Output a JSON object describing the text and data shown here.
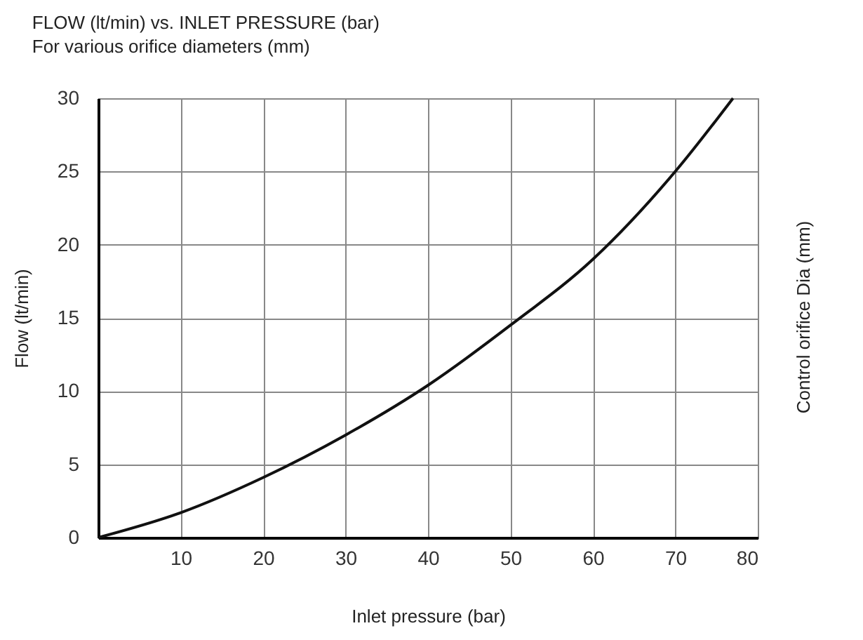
{
  "chart_data": {
    "type": "line",
    "title": "FLOW (lt/min) vs. INLET PRESSURE (bar)",
    "subtitle": "For various orifice diameters (mm)",
    "xlabel": "Inlet pressure (bar)",
    "ylabel": "Flow (lt/min)",
    "y2label": "Control orifice Dia (mm)",
    "x": [
      0,
      10,
      20,
      30,
      40,
      50,
      60,
      70,
      77
    ],
    "series": [
      {
        "color": "#111111",
        "values": [
          0,
          1.7,
          4.1,
          7.0,
          10.4,
          14.5,
          19.0,
          25.0,
          30.0
        ]
      }
    ],
    "xlim": [
      0,
      80
    ],
    "ylim": [
      0,
      30
    ],
    "xticks": [
      {
        "value": 0,
        "label": null
      },
      10,
      20,
      30,
      40,
      50,
      60,
      70,
      80
    ],
    "yticks": [
      0,
      5,
      10,
      15,
      20,
      25,
      30
    ],
    "grid": true,
    "marker": "none",
    "line_style": "solid"
  }
}
